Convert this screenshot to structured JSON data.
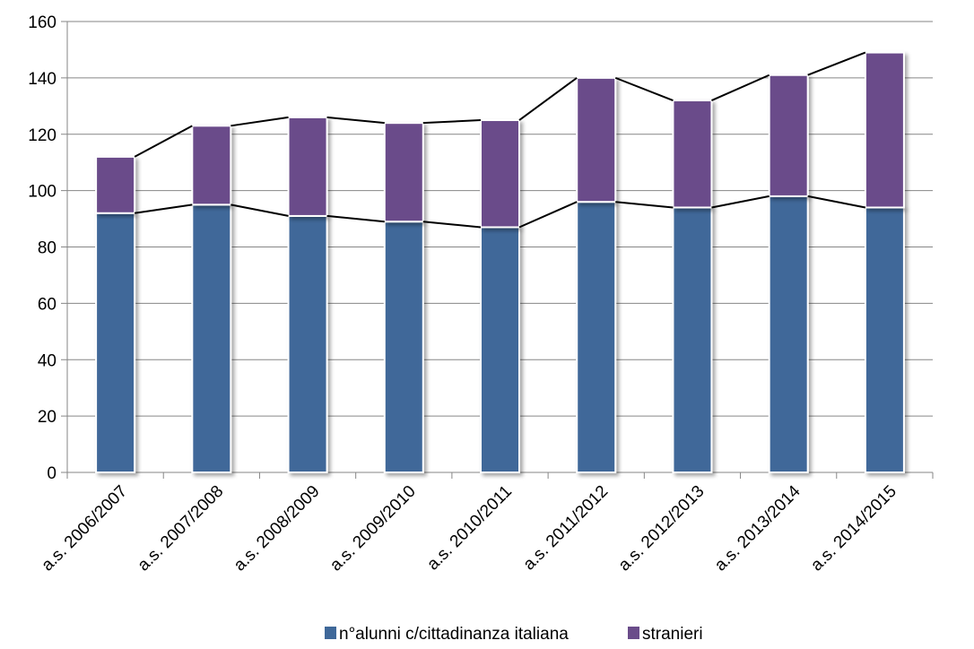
{
  "chart_data": {
    "type": "bar",
    "stacked": true,
    "categories": [
      "a.s. 2006/2007",
      "a.s. 2007/2008",
      "a.s. 2008/2009",
      "a.s. 2009/2010",
      "a.s. 2010/2011",
      "a.s. 2011/2012",
      "a.s. 2012/2013",
      "a.s. 2013/2014",
      "a.s. 2014/2015"
    ],
    "series": [
      {
        "name": "n°alunni c/cittadinanza italiana",
        "color": "#3F6899",
        "values": [
          92,
          95,
          91,
          89,
          87,
          96,
          94,
          98,
          94
        ]
      },
      {
        "name": "stranieri",
        "color": "#6A4C8A",
        "values": [
          20,
          28,
          35,
          35,
          38,
          44,
          38,
          43,
          55
        ]
      }
    ],
    "connector_lines": true,
    "ylim": [
      0,
      160
    ],
    "yticks": [
      0,
      20,
      40,
      60,
      80,
      100,
      120,
      140,
      160
    ],
    "ytick_labels": [
      "0",
      "20",
      "40",
      "60",
      "80",
      "100",
      "120",
      "140",
      "160"
    ],
    "grid": true,
    "legend_position": "bottom",
    "title": "",
    "xlabel": "",
    "ylabel": ""
  }
}
